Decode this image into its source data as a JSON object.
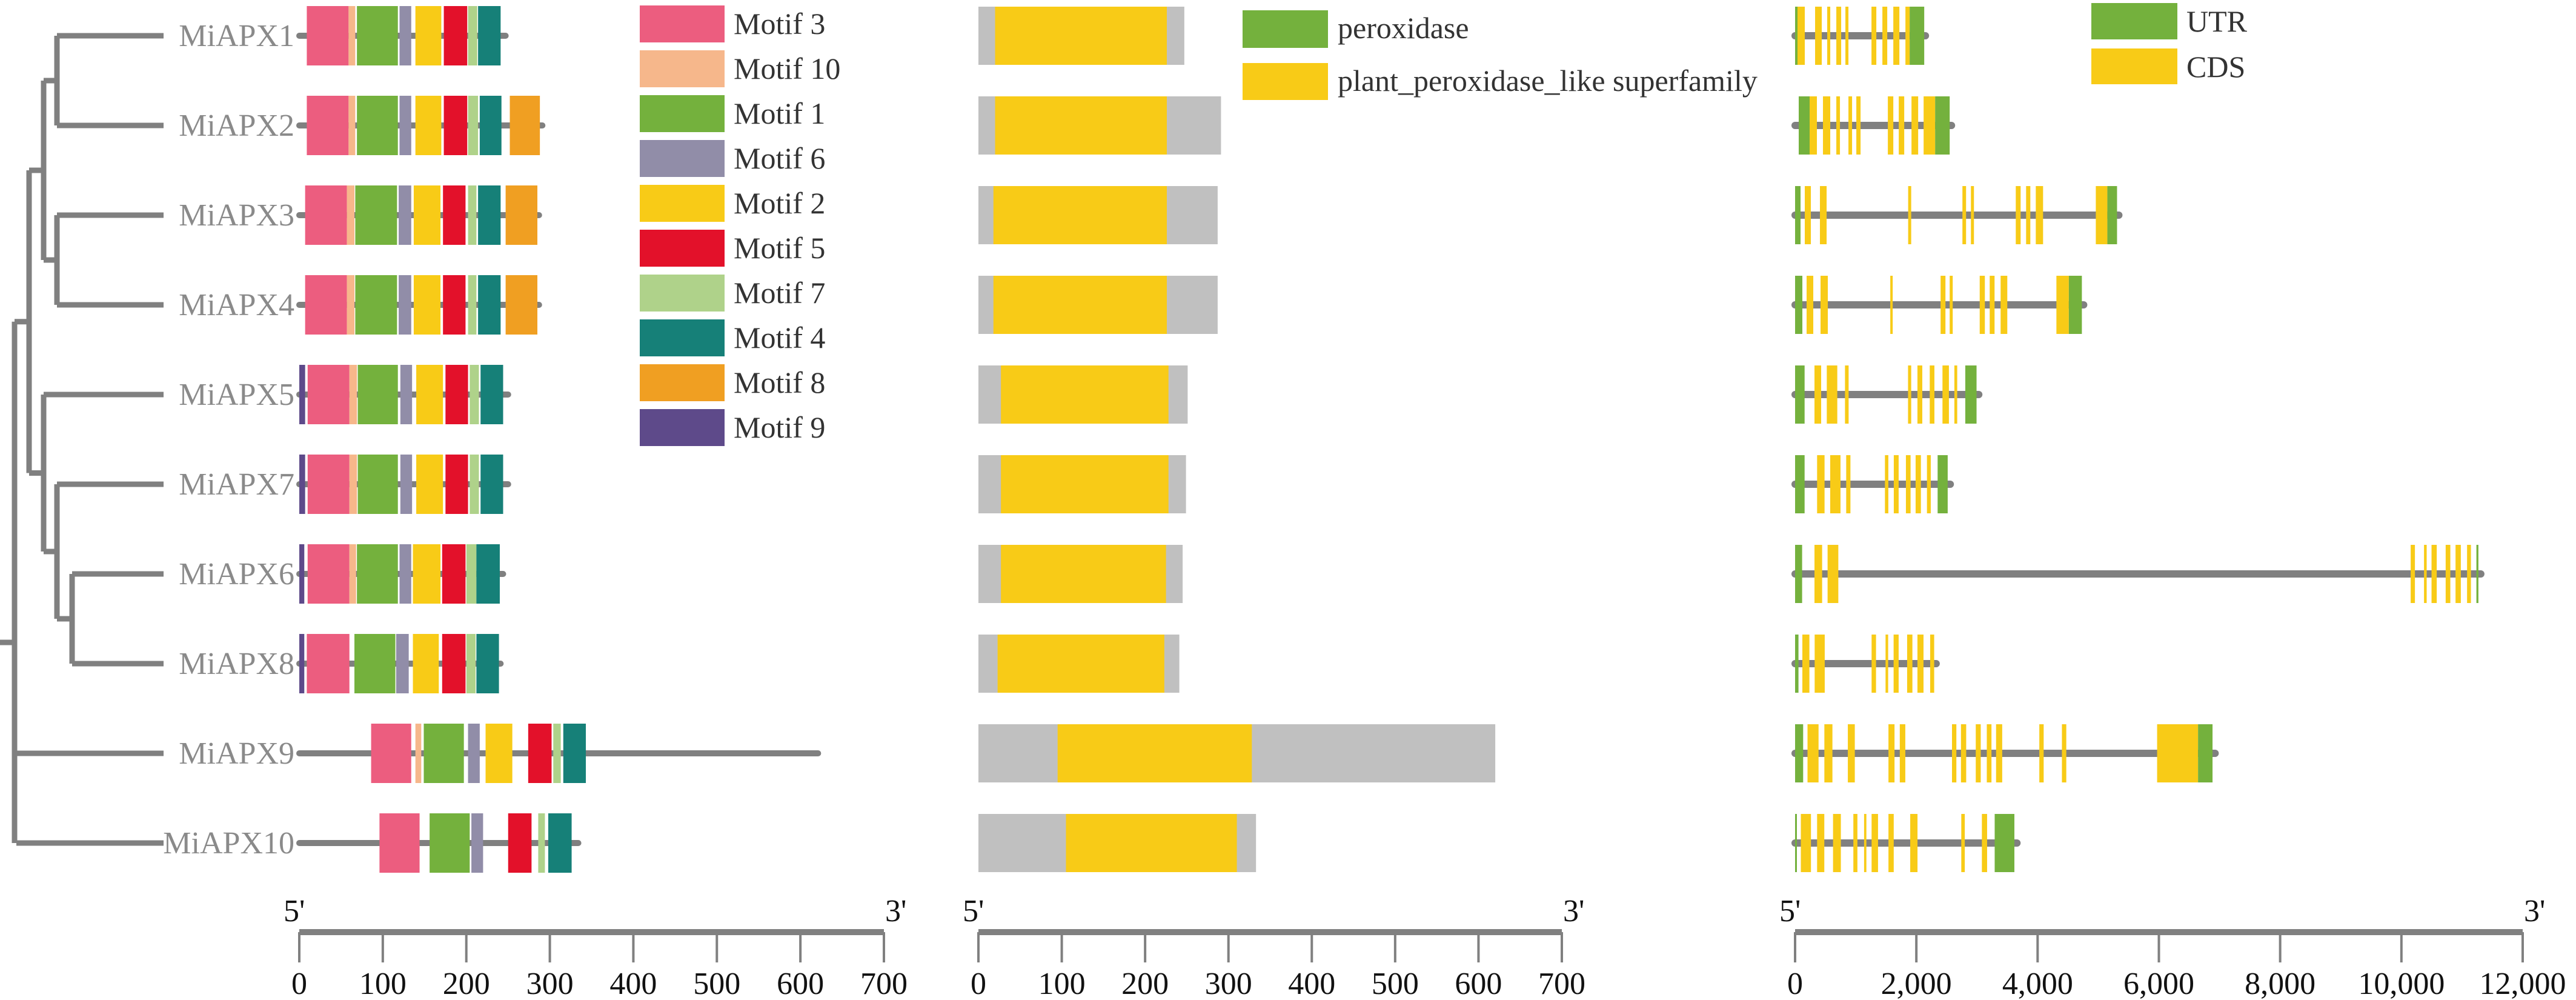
{
  "motif_legend": [
    {
      "name": "Motif 3",
      "color": "#EC5D7F"
    },
    {
      "name": "Motif 10",
      "color": "#F6B78B"
    },
    {
      "name": "Motif 1",
      "color": "#74B13D"
    },
    {
      "name": "Motif 6",
      "color": "#918DA8"
    },
    {
      "name": "Motif 2",
      "color": "#F8CB17"
    },
    {
      "name": "Motif 5",
      "color": "#E3112A"
    },
    {
      "name": "Motif 7",
      "color": "#AFD28A"
    },
    {
      "name": "Motif 4",
      "color": "#168078"
    },
    {
      "name": "Motif 8",
      "color": "#F09F22"
    },
    {
      "name": "Motif 9",
      "color": "#5E4A8A"
    }
  ],
  "domain_legend": [
    {
      "name": "peroxidase",
      "color": "#74B13D"
    },
    {
      "name": "plant_peroxidase_like superfamily",
      "color": "#F8CB17"
    }
  ],
  "gene_legend": [
    {
      "name": "UTR",
      "color": "#74B13D"
    },
    {
      "name": "CDS",
      "color": "#F8CB17"
    }
  ],
  "colors": {
    "line": "#808080",
    "protein": "#C0C0C0"
  },
  "axes": {
    "motif": {
      "end5": "5'",
      "end3": "3'",
      "max": 700,
      "ticks": [
        "0",
        "100",
        "200",
        "300",
        "400",
        "500",
        "600",
        "700"
      ],
      "values": [
        0,
        100,
        200,
        300,
        400,
        500,
        600,
        700
      ]
    },
    "domain": {
      "end5": "5'",
      "end3": "3'",
      "max": 700,
      "ticks": [
        "0",
        "100",
        "200",
        "300",
        "400",
        "500",
        "600",
        "700"
      ],
      "values": [
        0,
        100,
        200,
        300,
        400,
        500,
        600,
        700
      ]
    },
    "gene": {
      "end5": "5'",
      "end3": "3'",
      "max": 12000,
      "ticks": [
        "0",
        "2,000",
        "4,000",
        "6,000",
        "8,000",
        "10,000",
        "12,000"
      ],
      "values": [
        0,
        2000,
        4000,
        6000,
        8000,
        10000,
        12000
      ]
    }
  },
  "genes": [
    {
      "name": "MiAPX1",
      "protein_length": 247,
      "motifs": [
        [
          "Motif 3",
          9,
          59
        ],
        [
          "Motif 10",
          59,
          67
        ],
        [
          "Motif 1",
          69,
          118
        ],
        [
          "Motif 6",
          120,
          134
        ],
        [
          "Motif 2",
          139,
          170
        ],
        [
          "Motif 5",
          173,
          201
        ],
        [
          "Motif 7",
          202,
          213
        ],
        [
          "Motif 4",
          214,
          241
        ]
      ],
      "domain": {
        "length": 247,
        "superfamily": [
          20,
          226
        ]
      },
      "gene_length": 2150,
      "exons": [
        [
          0,
          40,
          "UTR"
        ],
        [
          40,
          160,
          "CDS"
        ],
        [
          330,
          440,
          "CDS"
        ],
        [
          530,
          580,
          "CDS"
        ],
        [
          680,
          760,
          "CDS"
        ],
        [
          830,
          880,
          "CDS"
        ],
        [
          1260,
          1340,
          "CDS"
        ],
        [
          1440,
          1520,
          "CDS"
        ],
        [
          1620,
          1720,
          "CDS"
        ],
        [
          1820,
          1890,
          "CDS"
        ],
        [
          1890,
          2130,
          "UTR"
        ]
      ]
    },
    {
      "name": "MiAPX2",
      "protein_length": 291,
      "motifs": [
        [
          "Motif 3",
          9,
          59
        ],
        [
          "Motif 10",
          59,
          67
        ],
        [
          "Motif 1",
          69,
          118
        ],
        [
          "Motif 6",
          120,
          134
        ],
        [
          "Motif 2",
          139,
          170
        ],
        [
          "Motif 5",
          173,
          201
        ],
        [
          "Motif 7",
          202,
          214
        ],
        [
          "Motif 4",
          216,
          242
        ],
        [
          "Motif 8",
          252,
          288
        ]
      ],
      "domain": {
        "length": 291,
        "superfamily": [
          20,
          226
        ]
      },
      "gene_length": 2580,
      "exons": [
        [
          60,
          240,
          "UTR"
        ],
        [
          240,
          360,
          "CDS"
        ],
        [
          460,
          580,
          "CDS"
        ],
        [
          680,
          740,
          "CDS"
        ],
        [
          880,
          940,
          "CDS"
        ],
        [
          1010,
          1080,
          "CDS"
        ],
        [
          1530,
          1620,
          "CDS"
        ],
        [
          1710,
          1800,
          "CDS"
        ],
        [
          1920,
          2030,
          "CDS"
        ],
        [
          2120,
          2310,
          "CDS"
        ],
        [
          2310,
          2550,
          "UTR"
        ]
      ]
    },
    {
      "name": "MiAPX3",
      "protein_length": 287,
      "motifs": [
        [
          "Motif 3",
          7,
          57
        ],
        [
          "Motif 10",
          57,
          66
        ],
        [
          "Motif 1",
          67,
          117
        ],
        [
          "Motif 6",
          119,
          134
        ],
        [
          "Motif 2",
          137,
          169
        ],
        [
          "Motif 5",
          172,
          199
        ],
        [
          "Motif 7",
          202,
          212
        ],
        [
          "Motif 4",
          214,
          241
        ],
        [
          "Motif 8",
          247,
          285
        ]
      ],
      "domain": {
        "length": 287,
        "superfamily": [
          18,
          226
        ]
      },
      "gene_length": 5340,
      "exons": [
        [
          0,
          90,
          "UTR"
        ],
        [
          160,
          260,
          "CDS"
        ],
        [
          410,
          520,
          "CDS"
        ],
        [
          1865,
          1915,
          "CDS"
        ],
        [
          2760,
          2820,
          "CDS"
        ],
        [
          2900,
          2950,
          "CDS"
        ],
        [
          3640,
          3720,
          "CDS"
        ],
        [
          3810,
          3880,
          "CDS"
        ],
        [
          3970,
          4090,
          "CDS"
        ],
        [
          4960,
          5150,
          "CDS"
        ],
        [
          5150,
          5310,
          "UTR"
        ]
      ]
    },
    {
      "name": "MiAPX4",
      "protein_length": 287,
      "motifs": [
        [
          "Motif 3",
          7,
          57
        ],
        [
          "Motif 10",
          57,
          66
        ],
        [
          "Motif 1",
          67,
          117
        ],
        [
          "Motif 6",
          119,
          134
        ],
        [
          "Motif 2",
          137,
          169
        ],
        [
          "Motif 5",
          172,
          199
        ],
        [
          "Motif 7",
          202,
          212
        ],
        [
          "Motif 4",
          214,
          241
        ],
        [
          "Motif 8",
          247,
          285
        ]
      ],
      "domain": {
        "length": 287,
        "superfamily": [
          18,
          226
        ]
      },
      "gene_length": 4760,
      "exons": [
        [
          0,
          120,
          "UTR"
        ],
        [
          190,
          300,
          "CDS"
        ],
        [
          420,
          540,
          "CDS"
        ],
        [
          1570,
          1610,
          "CDS"
        ],
        [
          2400,
          2480,
          "CDS"
        ],
        [
          2550,
          2600,
          "CDS"
        ],
        [
          3045,
          3130,
          "CDS"
        ],
        [
          3210,
          3290,
          "CDS"
        ],
        [
          3390,
          3500,
          "CDS"
        ],
        [
          4310,
          4515,
          "CDS"
        ],
        [
          4515,
          4730,
          "UTR"
        ]
      ]
    },
    {
      "name": "MiAPX5",
      "protein_length": 250,
      "motifs": [
        [
          "Motif 9",
          0,
          7
        ],
        [
          "Motif 3",
          10,
          60
        ],
        [
          "Motif 10",
          60,
          69
        ],
        [
          "Motif 1",
          70,
          118
        ],
        [
          "Motif 6",
          121,
          135
        ],
        [
          "Motif 2",
          140,
          172
        ],
        [
          "Motif 5",
          175,
          202
        ],
        [
          "Motif 7",
          204,
          215
        ],
        [
          "Motif 4",
          217,
          244
        ]
      ],
      "domain": {
        "length": 251,
        "superfamily": [
          27,
          228
        ]
      },
      "gene_length": 3030,
      "exons": [
        [
          0,
          157,
          "UTR"
        ],
        [
          320,
          430,
          "CDS"
        ],
        [
          523,
          696,
          "CDS"
        ],
        [
          823,
          883,
          "CDS"
        ],
        [
          1863,
          1915,
          "CDS"
        ],
        [
          2018,
          2098,
          "CDS"
        ],
        [
          2221,
          2298,
          "CDS"
        ],
        [
          2431,
          2537,
          "CDS"
        ],
        [
          2627,
          2674,
          "CDS"
        ],
        [
          2807,
          2993,
          "UTR"
        ]
      ]
    },
    {
      "name": "MiAPX7",
      "protein_length": 250,
      "motifs": [
        [
          "Motif 9",
          0,
          7
        ],
        [
          "Motif 3",
          10,
          60
        ],
        [
          "Motif 10",
          60,
          69
        ],
        [
          "Motif 1",
          70,
          118
        ],
        [
          "Motif 6",
          121,
          135
        ],
        [
          "Motif 2",
          140,
          172
        ],
        [
          "Motif 5",
          175,
          202
        ],
        [
          "Motif 7",
          204,
          215
        ],
        [
          "Motif 4",
          217,
          244
        ]
      ],
      "domain": {
        "length": 249,
        "superfamily": [
          27,
          228
        ]
      },
      "gene_length": 2560,
      "exons": [
        [
          0,
          157,
          "UTR"
        ],
        [
          363,
          486,
          "CDS"
        ],
        [
          579,
          749,
          "CDS"
        ],
        [
          843,
          913,
          "CDS"
        ],
        [
          1482,
          1538,
          "CDS"
        ],
        [
          1628,
          1708,
          "CDS"
        ],
        [
          1828,
          1905,
          "CDS"
        ],
        [
          1988,
          2075,
          "CDS"
        ],
        [
          2175,
          2238,
          "CDS"
        ],
        [
          2351,
          2517,
          "UTR"
        ]
      ]
    },
    {
      "name": "MiAPX6",
      "protein_length": 244,
      "motifs": [
        [
          "Motif 9",
          0,
          6
        ],
        [
          "Motif 3",
          10,
          60
        ],
        [
          "Motif 10",
          60,
          68
        ],
        [
          "Motif 1",
          69,
          118
        ],
        [
          "Motif 6",
          120,
          134
        ],
        [
          "Motif 2",
          136,
          169
        ],
        [
          "Motif 5",
          171,
          199
        ],
        [
          "Motif 7",
          200,
          212
        ],
        [
          "Motif 4",
          212,
          240
        ]
      ],
      "domain": {
        "length": 245,
        "superfamily": [
          27,
          225
        ]
      },
      "gene_length": 11310,
      "exons": [
        [
          0,
          116,
          "UTR"
        ],
        [
          320,
          446,
          "CDS"
        ],
        [
          536,
          713,
          "CDS"
        ],
        [
          10153,
          10223,
          "CDS"
        ],
        [
          10373,
          10417,
          "CDS"
        ],
        [
          10497,
          10583,
          "CDS"
        ],
        [
          10730,
          10807,
          "CDS"
        ],
        [
          10893,
          10980,
          "CDS"
        ],
        [
          11083,
          11147,
          "CDS"
        ],
        [
          11237,
          11270,
          "UTR"
        ]
      ]
    },
    {
      "name": "MiAPX8",
      "protein_length": 241,
      "motifs": [
        [
          "Motif 9",
          0,
          6
        ],
        [
          "Motif 3",
          9,
          60
        ],
        [
          "Motif 1",
          66,
          115
        ],
        [
          "Motif 6",
          116,
          131
        ],
        [
          "Motif 2",
          136,
          167
        ],
        [
          "Motif 5",
          171,
          199
        ],
        [
          "Motif 7",
          200,
          211
        ],
        [
          "Motif 4",
          212,
          239
        ]
      ],
      "domain": {
        "length": 241,
        "superfamily": [
          23,
          223
        ]
      },
      "gene_length": 2327,
      "exons": [
        [
          0,
          56,
          "UTR"
        ],
        [
          120,
          236,
          "CDS"
        ],
        [
          323,
          489,
          "CDS"
        ],
        [
          1262,
          1335,
          "CDS"
        ],
        [
          1492,
          1535,
          "CDS"
        ],
        [
          1625,
          1708,
          "CDS"
        ],
        [
          1848,
          1935,
          "CDS"
        ],
        [
          2018,
          2118,
          "CDS"
        ],
        [
          2228,
          2294,
          "CDS"
        ]
      ]
    },
    {
      "name": "MiAPX9",
      "protein_length": 621,
      "motifs": [
        [
          "Motif 3",
          86,
          134
        ],
        [
          "Motif 10",
          139,
          146
        ],
        [
          "Motif 1",
          149,
          197
        ],
        [
          "Motif 6",
          202,
          216
        ],
        [
          "Motif 2",
          223,
          255
        ],
        [
          "Motif 5",
          274,
          302
        ],
        [
          "Motif 7",
          304,
          313
        ],
        [
          "Motif 4",
          316,
          343
        ]
      ],
      "domain": {
        "length": 620,
        "superfamily": [
          95,
          328
        ]
      },
      "gene_length": 6928,
      "exons": [
        [
          0,
          133,
          "UTR"
        ],
        [
          205,
          387,
          "CDS"
        ],
        [
          483,
          616,
          "CDS"
        ],
        [
          870,
          985,
          "CDS"
        ],
        [
          1540,
          1640,
          "CDS"
        ],
        [
          1727,
          1818,
          "CDS"
        ],
        [
          2588,
          2660,
          "CDS"
        ],
        [
          2736,
          2822,
          "CDS"
        ],
        [
          2980,
          3062,
          "CDS"
        ],
        [
          3162,
          3239,
          "CDS"
        ],
        [
          3315,
          3416,
          "CDS"
        ],
        [
          4028,
          4100,
          "CDS"
        ],
        [
          4401,
          4473,
          "CDS"
        ],
        [
          5971,
          6646,
          "CDS"
        ],
        [
          6646,
          6885,
          "UTR"
        ]
      ]
    },
    {
      "name": "MiAPX10",
      "protein_length": 334,
      "motifs": [
        [
          "Motif 3",
          96,
          144
        ],
        [
          "Motif 1",
          156,
          204
        ],
        [
          "Motif 6",
          206,
          220
        ],
        [
          "Motif 5",
          250,
          278
        ],
        [
          "Motif 7",
          286,
          294
        ],
        [
          "Motif 4",
          298,
          326
        ]
      ],
      "domain": {
        "length": 333,
        "superfamily": [
          105,
          310
        ]
      },
      "gene_length": 3660,
      "exons": [
        [
          0,
          28,
          "UTR"
        ],
        [
          95,
          262,
          "CDS"
        ],
        [
          363,
          482,
          "CDS"
        ],
        [
          626,
          755,
          "CDS"
        ],
        [
          961,
          1028,
          "CDS"
        ],
        [
          1138,
          1176,
          "CDS"
        ],
        [
          1262,
          1368,
          "CDS"
        ],
        [
          1540,
          1627,
          "CDS"
        ],
        [
          1899,
          2019,
          "CDS"
        ],
        [
          2741,
          2799,
          "CDS"
        ],
        [
          3081,
          3167,
          "CDS"
        ],
        [
          3292,
          3617,
          "UTR"
        ]
      ]
    }
  ]
}
